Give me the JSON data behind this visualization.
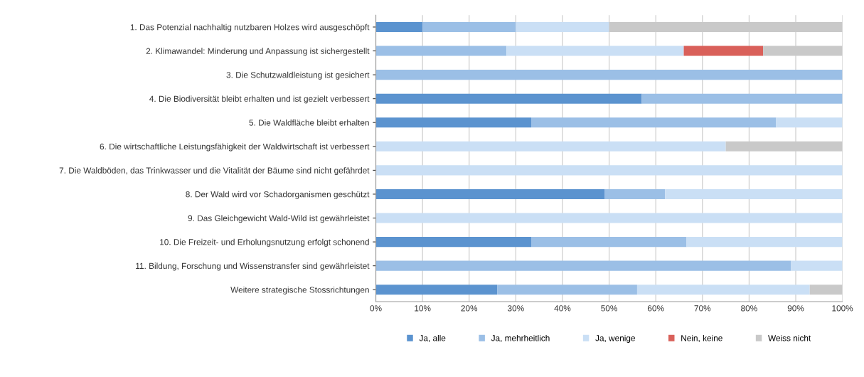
{
  "chart_data": {
    "type": "bar",
    "orientation": "horizontal",
    "stacked": true,
    "categories": [
      "1. Das Potenzial nachhaltig nutzbaren Holzes wird ausgeschöpft",
      "2. Klimawandel: Minderung und Anpassung ist sichergestellt",
      "3. Die Schutzwaldleistung ist gesichert",
      "4. Die Biodiversität bleibt erhalten und ist gezielt verbessert",
      "5. Die Waldfläche bleibt erhalten",
      "6. Die wirtschaftliche Leistungsfähigkeit der Waldwirtschaft ist verbessert",
      "7. Die Waldböden, das Trinkwasser und die Vitalität der Bäume sind nicht gefährdet",
      "8. Der Wald wird vor Schadorganismen geschützt",
      "9. Das Gleichgewicht Wald-Wild ist gewährleistet",
      "10. Die Freizeit- und Erholungsnutzung erfolgt schonend",
      "11. Bildung, Forschung und Wissenstransfer sind gewährleistet",
      "Weitere strategische Stossrichtungen"
    ],
    "series": [
      {
        "name": "Ja, alle",
        "color": "#5b93cf",
        "values": [
          10,
          0,
          0,
          57,
          33.3,
          0,
          0,
          49,
          0,
          33.3,
          0,
          26
        ]
      },
      {
        "name": "Ja, mehrheitlich",
        "color": "#9bbfe6",
        "values": [
          20,
          28,
          100,
          43,
          52.5,
          0,
          0,
          13,
          0,
          33.3,
          89,
          30
        ]
      },
      {
        "name": "Ja, wenige",
        "color": "#cadff5",
        "values": [
          20,
          38,
          0,
          0,
          14.2,
          75,
          100,
          38,
          100,
          33.4,
          11,
          37
        ]
      },
      {
        "name": "Nein, keine",
        "color": "#d9605a",
        "values": [
          0,
          17,
          0,
          0,
          0,
          0,
          0,
          0,
          0,
          0,
          0,
          0
        ]
      },
      {
        "name": "Weiss nicht",
        "color": "#c9c9c9",
        "values": [
          50,
          17,
          0,
          0,
          0,
          25,
          0,
          0,
          0,
          0,
          0,
          7
        ]
      }
    ],
    "xlim": [
      0,
      100
    ],
    "xticks": [
      {
        "value": 0,
        "label": "0%"
      },
      {
        "value": 10,
        "label": "10%"
      },
      {
        "value": 20,
        "label": "20%"
      },
      {
        "value": 30,
        "label": "30%"
      },
      {
        "value": 40,
        "label": "40%"
      },
      {
        "value": 50,
        "label": "50%"
      },
      {
        "value": 60,
        "label": "60%"
      },
      {
        "value": 70,
        "label": "70%"
      },
      {
        "value": 80,
        "label": "80%"
      },
      {
        "value": 90,
        "label": "90%"
      },
      {
        "value": 100,
        "label": "100%"
      }
    ],
    "grid": "x",
    "legend": "bottom"
  }
}
